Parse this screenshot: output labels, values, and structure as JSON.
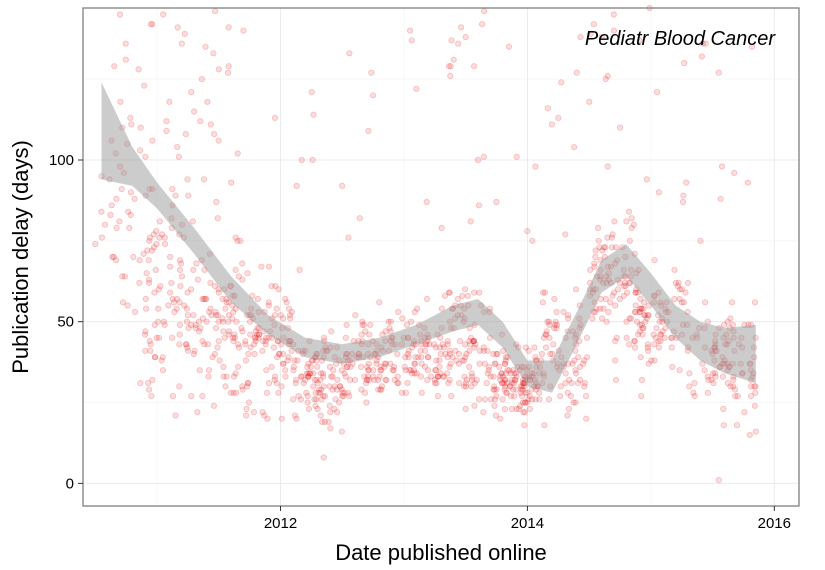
{
  "chart_data": {
    "type": "scatter",
    "panel_label": "Pediatr Blood Cancer",
    "xlabel": "Date published online",
    "ylabel": "Publication delay (days)",
    "xlim": [
      2010.4,
      2016.2
    ],
    "ylim": [
      -7,
      147
    ],
    "x_ticks": [
      2012,
      2014,
      2016
    ],
    "x_tick_labels": [
      "2012",
      "2014",
      "2016"
    ],
    "y_ticks": [
      0,
      50,
      100
    ],
    "y_tick_labels": [
      "0",
      "50",
      "100"
    ],
    "grid": true,
    "point_color": "#e41a1c",
    "point_alpha": 0.15,
    "smooth_color": "#999999",
    "clusters": [
      {
        "x0": 2010.55,
        "x1": 2010.9,
        "y_mid": 80,
        "spread": 25,
        "n": 45
      },
      {
        "x0": 2010.9,
        "x1": 2011.3,
        "y_mid": 58,
        "spread": 22,
        "n": 110
      },
      {
        "x0": 2011.3,
        "x1": 2011.7,
        "y_mid": 48,
        "spread": 18,
        "n": 110
      },
      {
        "x0": 2011.7,
        "x1": 2012.1,
        "y_mid": 44,
        "spread": 14,
        "n": 100
      },
      {
        "x0": 2012.1,
        "x1": 2012.5,
        "y_mid": 32,
        "spread": 10,
        "n": 110
      },
      {
        "x0": 2012.5,
        "x1": 2012.9,
        "y_mid": 38,
        "spread": 9,
        "n": 100
      },
      {
        "x0": 2012.9,
        "x1": 2013.3,
        "y_mid": 40,
        "spread": 10,
        "n": 90
      },
      {
        "x0": 2013.3,
        "x1": 2013.7,
        "y_mid": 42,
        "spread": 13,
        "n": 110
      },
      {
        "x0": 2013.7,
        "x1": 2014.1,
        "y_mid": 31,
        "spread": 8,
        "n": 130
      },
      {
        "x0": 2014.1,
        "x1": 2014.5,
        "y_mid": 40,
        "spread": 14,
        "n": 90
      },
      {
        "x0": 2014.5,
        "x1": 2014.9,
        "y_mid": 63,
        "spread": 16,
        "n": 110
      },
      {
        "x0": 2014.9,
        "x1": 2015.3,
        "y_mid": 50,
        "spread": 12,
        "n": 90
      },
      {
        "x0": 2015.3,
        "x1": 2015.85,
        "y_mid": 38,
        "spread": 12,
        "n": 110
      }
    ],
    "outliers": [
      {
        "x": 2010.7,
        "y": 145
      },
      {
        "x": 2010.85,
        "y": 128
      },
      {
        "x": 2011.05,
        "y": 145
      },
      {
        "x": 2011.2,
        "y": 136
      },
      {
        "x": 2011.5,
        "y": 128
      },
      {
        "x": 2011.7,
        "y": 140
      },
      {
        "x": 2011.1,
        "y": 118
      },
      {
        "x": 2011.35,
        "y": 112
      },
      {
        "x": 2012.5,
        "y": 92
      },
      {
        "x": 2012.75,
        "y": 120
      },
      {
        "x": 2013.05,
        "y": 140
      },
      {
        "x": 2013.1,
        "y": 122
      },
      {
        "x": 2013.5,
        "y": 138
      },
      {
        "x": 2013.65,
        "y": 146
      },
      {
        "x": 2013.85,
        "y": 135
      },
      {
        "x": 2014.25,
        "y": 113
      },
      {
        "x": 2014.4,
        "y": 127
      },
      {
        "x": 2014.6,
        "y": 138
      },
      {
        "x": 2014.7,
        "y": 145
      },
      {
        "x": 2015.05,
        "y": 121
      },
      {
        "x": 2014.75,
        "y": 110
      },
      {
        "x": 2015.55,
        "y": 1
      },
      {
        "x": 2012.35,
        "y": 8
      },
      {
        "x": 2011.15,
        "y": 21
      },
      {
        "x": 2015.85,
        "y": 16
      },
      {
        "x": 2010.5,
        "y": 74
      },
      {
        "x": 2012.8,
        "y": 56
      },
      {
        "x": 2013.6,
        "y": 100
      },
      {
        "x": 2014.65,
        "y": 98
      }
    ],
    "smooth_fit": {
      "x": [
        2010.55,
        2010.8,
        2011.0,
        2011.3,
        2011.6,
        2011.9,
        2012.2,
        2012.5,
        2012.8,
        2013.1,
        2013.4,
        2013.6,
        2013.8,
        2014.0,
        2014.2,
        2014.4,
        2014.6,
        2014.8,
        2015.0,
        2015.2,
        2015.4,
        2015.6,
        2015.85
      ],
      "y": [
        109,
        98,
        89,
        75,
        60,
        49,
        42,
        40,
        42,
        46,
        51,
        53,
        46,
        34,
        33,
        48,
        64,
        69,
        60,
        50,
        44,
        41,
        40
      ],
      "se": [
        15,
        6,
        4,
        4,
        4,
        3,
        3,
        3,
        3,
        3,
        4,
        4,
        4,
        4,
        5,
        5,
        5,
        5,
        5,
        5,
        6,
        7,
        9
      ]
    }
  }
}
